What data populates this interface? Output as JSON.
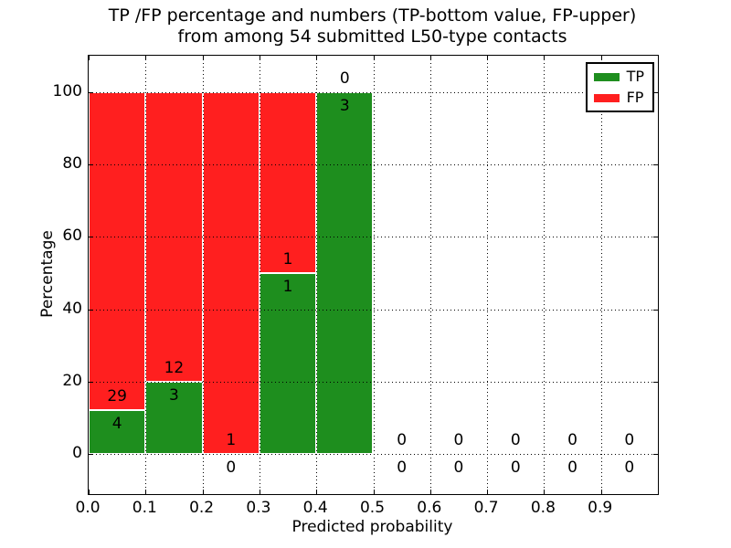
{
  "figure": {
    "title_line1": "TP /FP percentage and numbers (TP-bottom value, FP-upper)",
    "title_line2": "from among 54 submitted L50-type contacts",
    "total_contacts": 54
  },
  "colors": {
    "tp_green": "#1e8e1e",
    "fp_red": "#ff1f1f",
    "grid": "#000000",
    "background": "#ffffff",
    "bar_edge": "#ffffff"
  },
  "chart_data": {
    "type": "bar",
    "stacked": true,
    "title": "TP /FP percentage and numbers (TP-bottom value, FP-upper) from among 54 submitted L50-type contacts",
    "xlabel": "Predicted probability",
    "ylabel": "Percentage",
    "xlim": [
      0.0,
      1.0
    ],
    "ylim": [
      -11,
      110
    ],
    "grid": true,
    "x_ticks": [
      "0.0",
      "0.1",
      "0.2",
      "0.3",
      "0.4",
      "0.5",
      "0.6",
      "0.7",
      "0.8",
      "0.9"
    ],
    "x_tick_values": [
      0.0,
      0.1,
      0.2,
      0.3,
      0.4,
      0.5,
      0.6,
      0.7,
      0.8,
      0.9
    ],
    "y_ticks": [
      "0",
      "20",
      "40",
      "60",
      "80",
      "100"
    ],
    "y_tick_values": [
      0,
      20,
      40,
      60,
      80,
      100
    ],
    "legend": {
      "position": "upper-right",
      "entries": [
        {
          "label": "TP",
          "color": "#1e8e1e"
        },
        {
          "label": "FP",
          "color": "#ff1f1f"
        }
      ]
    },
    "series_note": "green TP segment drawn from 0 up to tp_pct, red FP segment stacked above to 100%; FP count printed above the TP/FP boundary, TP count printed below it",
    "bins": [
      {
        "range": [
          0.0,
          0.1
        ],
        "tp": 4,
        "fp": 29,
        "tp_pct": 12.1,
        "fp_pct": 87.9
      },
      {
        "range": [
          0.1,
          0.2
        ],
        "tp": 3,
        "fp": 12,
        "tp_pct": 20.0,
        "fp_pct": 80.0
      },
      {
        "range": [
          0.2,
          0.3
        ],
        "tp": 0,
        "fp": 1,
        "tp_pct": 0.0,
        "fp_pct": 100.0
      },
      {
        "range": [
          0.3,
          0.4
        ],
        "tp": 1,
        "fp": 1,
        "tp_pct": 50.0,
        "fp_pct": 50.0
      },
      {
        "range": [
          0.4,
          0.5
        ],
        "tp": 3,
        "fp": 0,
        "tp_pct": 100.0,
        "fp_pct": 0.0
      },
      {
        "range": [
          0.5,
          0.6
        ],
        "tp": 0,
        "fp": 0,
        "tp_pct": 0.0,
        "fp_pct": 0.0
      },
      {
        "range": [
          0.6,
          0.7
        ],
        "tp": 0,
        "fp": 0,
        "tp_pct": 0.0,
        "fp_pct": 0.0
      },
      {
        "range": [
          0.7,
          0.8
        ],
        "tp": 0,
        "fp": 0,
        "tp_pct": 0.0,
        "fp_pct": 0.0
      },
      {
        "range": [
          0.8,
          0.9
        ],
        "tp": 0,
        "fp": 0,
        "tp_pct": 0.0,
        "fp_pct": 0.0
      },
      {
        "range": [
          0.9,
          1.0
        ],
        "tp": 0,
        "fp": 0,
        "tp_pct": 0.0,
        "fp_pct": 0.0
      }
    ]
  }
}
